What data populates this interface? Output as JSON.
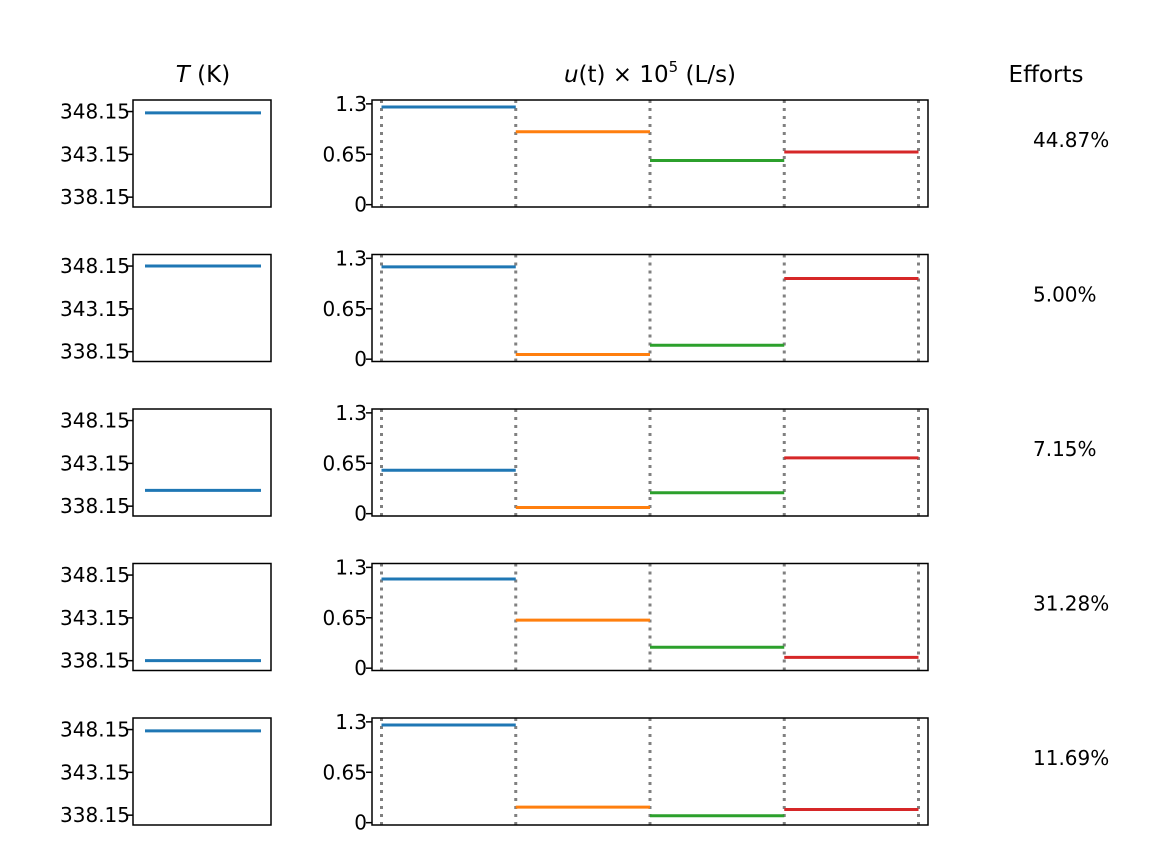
{
  "headers": {
    "temperature_title": "T (K)",
    "temperature_symbol": "T",
    "temperature_unit": " (K)",
    "control_title": "u(t) × 10^5 (L/s)",
    "control_symbol": "u",
    "control_arg": "(t)",
    "control_times": " × 10",
    "control_exp": "5",
    "control_unit": " (L/s)",
    "efforts_title": "Efforts"
  },
  "chart_data": {
    "type": "line",
    "temperature_axis": {
      "ticks": [
        348.15,
        343.15,
        338.15
      ],
      "tick_labels": [
        "348.15",
        "343.15",
        "338.15"
      ],
      "ylim": [
        337.0,
        349.5
      ]
    },
    "control_axis": {
      "ticks": [
        1.3,
        0.65,
        0
      ],
      "tick_labels": [
        "1.3",
        "0.65",
        "0"
      ],
      "ylim": [
        -0.03,
        1.35
      ]
    },
    "time_boundaries": [
      0,
      1,
      2,
      3,
      4
    ],
    "segment_colors": [
      "#1f77b4",
      "#ff7f0e",
      "#2ca02c",
      "#d62728"
    ],
    "temperature_color": "#1f77b4",
    "boundary_line_color": "#808080",
    "rows": [
      {
        "temperature": 348.0,
        "controls": [
          1.26,
          0.94,
          0.57,
          0.68
        ],
        "effort": "44.87%"
      },
      {
        "temperature": 348.15,
        "controls": [
          1.19,
          0.06,
          0.18,
          1.04
        ],
        "effort": "5.00%"
      },
      {
        "temperature": 340.0,
        "controls": [
          0.56,
          0.08,
          0.27,
          0.72
        ],
        "effort": "7.15%"
      },
      {
        "temperature": 338.15,
        "controls": [
          1.15,
          0.62,
          0.27,
          0.14
        ],
        "effort": "31.28%"
      },
      {
        "temperature": 348.0,
        "controls": [
          1.26,
          0.2,
          0.09,
          0.17
        ],
        "effort": "11.69%"
      }
    ]
  }
}
